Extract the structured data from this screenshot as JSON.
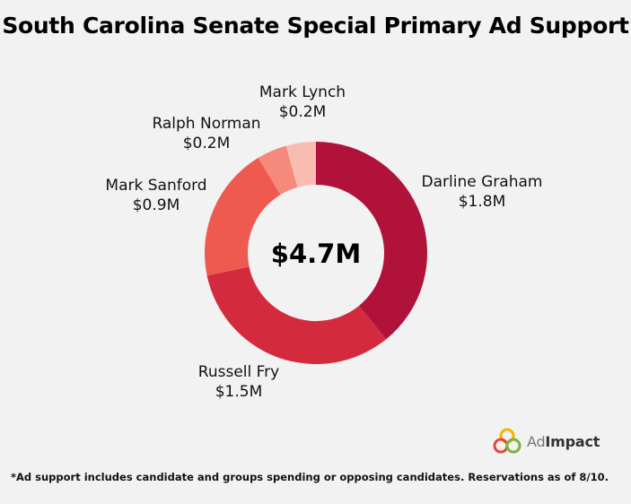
{
  "colors": {
    "background": "#f2f2f2"
  },
  "chart_data": {
    "type": "pie",
    "title": "South Carolina Senate Special Primary Ad Support",
    "center_label": "$4.7M",
    "categories": [
      "Darline Graham",
      "Russell Fry",
      "Mark Sanford",
      "Ralph Norman",
      "Mark Lynch"
    ],
    "values": [
      1.8,
      1.5,
      0.9,
      0.2,
      0.2
    ],
    "value_labels": [
      "$1.8M",
      "$1.5M",
      "$0.9M",
      "$0.2M",
      "$0.2M"
    ],
    "colors": [
      "#b0123a",
      "#d42a3e",
      "#ee5a4f",
      "#f5897b",
      "#f9bcb1"
    ],
    "unit": "$M",
    "donut": true
  },
  "branding": {
    "logo_text_a": "Ad",
    "logo_text_b": "Impact",
    "logo_icon": "adimpact-rings-icon"
  },
  "footnote": "*Ad support includes candidate and groups spending or opposing candidates. Reservations as of 8/10."
}
